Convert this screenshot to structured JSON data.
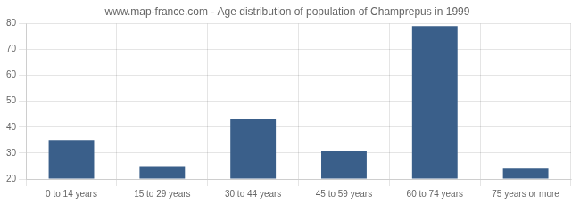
{
  "chart_data": {
    "type": "bar",
    "title": "www.map-france.com - Age distribution of population of Champrepus in 1999",
    "categories": [
      "0 to 14 years",
      "15 to 29 years",
      "30 to 44 years",
      "45 to 59 years",
      "60 to 74 years",
      "75 years or more"
    ],
    "values": [
      35,
      25,
      43,
      31,
      79,
      24
    ],
    "color": "#3a5f8a",
    "ylim": [
      20,
      80
    ],
    "yticks": [
      20,
      30,
      40,
      50,
      60,
      70,
      80
    ],
    "grid": true
  }
}
